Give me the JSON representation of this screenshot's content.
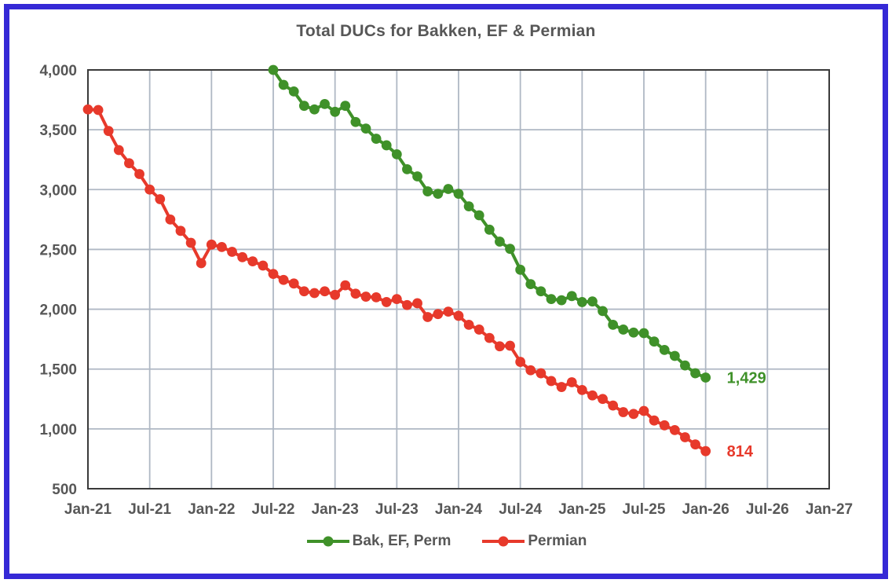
{
  "frame": {
    "border_color": "#3529D6",
    "background": "#FFFFFF"
  },
  "chart_data": {
    "type": "line",
    "title": "Total DUCs for Bakken, EF & Permian",
    "xlabel": "",
    "ylabel": "",
    "grid": true,
    "legend_position": "bottom",
    "text_color": "#575757",
    "gridline_color": "#AFB8C4",
    "plot_frame_color": "#3A3A3A",
    "x_axis": {
      "tick_labels": [
        "Jan-21",
        "Jul-21",
        "Jan-22",
        "Jul-22",
        "Jan-23",
        "Jul-23",
        "Jan-24",
        "Jul-24",
        "Jan-25",
        "Jul-25",
        "Jan-26",
        "Jul-26",
        "Jan-27"
      ],
      "tick_month_indexes": [
        0,
        6,
        12,
        18,
        24,
        30,
        36,
        42,
        48,
        54,
        60,
        66,
        72
      ],
      "months_span": 72
    },
    "y_axis": {
      "min": 500,
      "max": 4000,
      "step": 500,
      "tick_labels": [
        "4,000",
        "3,500",
        "3,000",
        "2,500",
        "2,000",
        "1,500",
        "1,000",
        "500"
      ],
      "tick_values": [
        4000,
        3500,
        3000,
        2500,
        2000,
        1500,
        1000,
        500
      ]
    },
    "series": [
      {
        "name": "Permian",
        "color": "#E7392B",
        "start_month": "Jan-21",
        "start_month_index": 0,
        "end_month": "Jan-26",
        "end_label": "814",
        "values": [
          3670,
          3665,
          3490,
          3330,
          3220,
          3130,
          3000,
          2920,
          2750,
          2655,
          2555,
          2385,
          2540,
          2520,
          2480,
          2435,
          2400,
          2365,
          2295,
          2245,
          2215,
          2150,
          2135,
          2150,
          2120,
          2200,
          2130,
          2105,
          2100,
          2060,
          2085,
          2035,
          2050,
          1935,
          1960,
          1980,
          1945,
          1870,
          1830,
          1760,
          1690,
          1695,
          1560,
          1490,
          1465,
          1400,
          1350,
          1390,
          1325,
          1280,
          1250,
          1195,
          1140,
          1125,
          1150,
          1070,
          1030,
          990,
          930,
          870,
          814
        ]
      },
      {
        "name": "Bak, EF, Perm",
        "color": "#3F9129",
        "start_month": "Jul-22",
        "start_month_index": 18,
        "end_month": "Jan-26",
        "end_label": "1,429",
        "values": [
          4000,
          3875,
          3820,
          3700,
          3670,
          3715,
          3650,
          3700,
          3565,
          3510,
          3425,
          3370,
          3295,
          3170,
          3110,
          2985,
          2965,
          3005,
          2965,
          2860,
          2785,
          2665,
          2565,
          2505,
          2330,
          2210,
          2150,
          2085,
          2075,
          2110,
          2060,
          2065,
          1985,
          1870,
          1830,
          1805,
          1800,
          1730,
          1660,
          1610,
          1530,
          1465,
          1429
        ]
      }
    ],
    "legend_order": [
      1,
      0
    ]
  }
}
